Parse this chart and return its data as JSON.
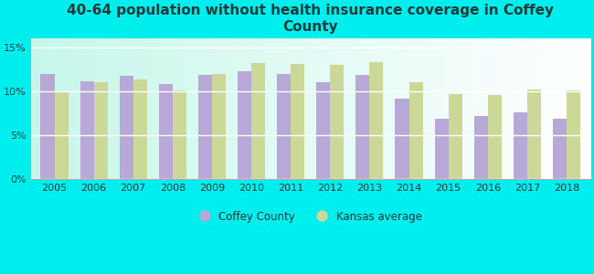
{
  "title": "40-64 population without health insurance coverage in Coffey\nCounty",
  "years": [
    2005,
    2006,
    2007,
    2008,
    2009,
    2010,
    2011,
    2012,
    2013,
    2014,
    2015,
    2016,
    2017,
    2018
  ],
  "coffey": [
    11.9,
    11.1,
    11.7,
    10.8,
    11.8,
    12.3,
    11.9,
    11.0,
    11.8,
    9.1,
    6.9,
    7.2,
    7.6,
    6.9
  ],
  "kansas": [
    10.0,
    11.0,
    11.3,
    10.1,
    11.9,
    13.2,
    13.1,
    13.0,
    13.3,
    11.0,
    9.7,
    9.5,
    10.2,
    10.1
  ],
  "coffey_color": "#b8a8d8",
  "kansas_color": "#ccd898",
  "background_color": "#00eeee",
  "title_color": "#1a3a3a",
  "title_fontsize": 11,
  "tick_fontsize": 8,
  "ylim": [
    0,
    16
  ],
  "yticks": [
    0,
    5,
    10,
    15
  ],
  "ytick_labels": [
    "0%",
    "5%",
    "10%",
    "15%"
  ],
  "legend_coffey": "Coffey County",
  "legend_kansas": "Kansas average"
}
